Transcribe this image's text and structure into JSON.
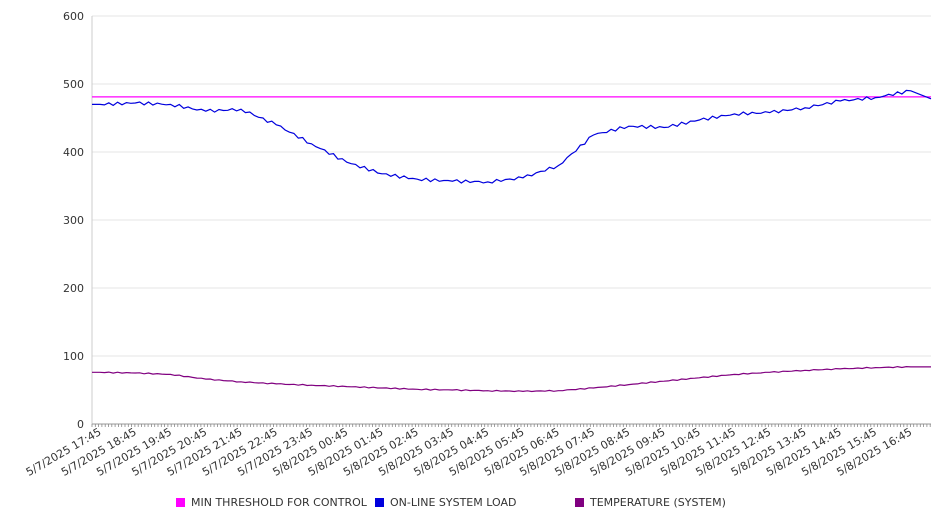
{
  "chart_data": {
    "type": "line",
    "title": "",
    "xlabel": "",
    "ylabel": "",
    "ylim": [
      0,
      600
    ],
    "y_ticks": [
      0,
      100,
      200,
      300,
      400,
      500,
      600
    ],
    "grid": true,
    "legend_position": "bottom",
    "categories": [
      "5/7/2025 17:45",
      "5/7/2025 18:45",
      "5/7/2025 19:45",
      "5/7/2025 20:45",
      "5/7/2025 21:45",
      "5/7/2025 22:45",
      "5/7/2025 23:45",
      "5/8/2025 00:45",
      "5/8/2025 01:45",
      "5/8/2025 02:45",
      "5/8/2025 03:45",
      "5/8/2025 04:45",
      "5/8/2025 05:45",
      "5/8/2025 06:45",
      "5/8/2025 07:45",
      "5/8/2025 08:45",
      "5/8/2025 09:45",
      "5/8/2025 10:45",
      "5/8/2025 11:45",
      "5/8/2025 12:45",
      "5/8/2025 13:45",
      "5/8/2025 14:45",
      "5/8/2025 15:45",
      "5/8/2025 16:45"
    ],
    "series": [
      {
        "name": "MIN THRESHOLD FOR CONTROL",
        "color": "#ff00ff",
        "x": [
          "5/7/2025 17:45",
          "5/8/2025 16:45"
        ],
        "values": [
          481,
          481
        ],
        "span": "full"
      },
      {
        "name": "ON-LINE SYSTEM LOAD",
        "color": "#0000dd",
        "x": [
          "5/7/2025 17:45",
          "5/7/2025 18:45",
          "5/7/2025 19:45",
          "5/7/2025 20:45",
          "5/7/2025 21:45",
          "5/7/2025 22:45",
          "5/7/2025 23:45",
          "5/8/2025 00:45",
          "5/8/2025 01:45",
          "5/8/2025 02:45",
          "5/8/2025 03:45",
          "5/8/2025 04:45",
          "5/8/2025 05:45",
          "5/8/2025 06:45",
          "5/8/2025 07:45",
          "5/8/2025 08:45",
          "5/8/2025 09:45",
          "5/8/2025 10:45",
          "5/8/2025 11:45",
          "5/8/2025 12:45",
          "5/8/2025 13:45",
          "5/8/2025 14:45",
          "5/8/2025 15:45",
          "5/8/2025 16:45"
        ],
        "values": [
          470,
          472,
          470,
          460,
          463,
          440,
          412,
          385,
          368,
          360,
          357,
          356,
          362,
          380,
          425,
          438,
          436,
          447,
          456,
          458,
          465,
          475,
          480,
          490
        ]
      },
      {
        "name": "TEMPERATURE (SYSTEM)",
        "color": "#800080",
        "x": [
          "5/7/2025 17:45",
          "5/7/2025 18:45",
          "5/7/2025 19:45",
          "5/7/2025 20:45",
          "5/7/2025 21:45",
          "5/7/2025 22:45",
          "5/7/2025 23:45",
          "5/8/2025 00:45",
          "5/8/2025 01:45",
          "5/8/2025 02:45",
          "5/8/2025 03:45",
          "5/8/2025 04:45",
          "5/8/2025 05:45",
          "5/8/2025 06:45",
          "5/8/2025 07:45",
          "5/8/2025 08:45",
          "5/8/2025 09:45",
          "5/8/2025 10:45",
          "5/8/2025 11:45",
          "5/8/2025 12:45",
          "5/8/2025 13:45",
          "5/8/2025 14:45",
          "5/8/2025 15:45",
          "5/8/2025 16:45"
        ],
        "values": [
          76,
          75,
          73,
          66,
          62,
          59,
          57,
          55,
          53,
          51,
          50,
          49,
          48,
          49,
          53,
          58,
          63,
          68,
          73,
          76,
          79,
          81,
          83,
          84
        ]
      }
    ]
  },
  "legend": [
    {
      "label": "MIN THRESHOLD FOR CONTROL",
      "color": "#ff00ff"
    },
    {
      "label": "ON-LINE SYSTEM LOAD",
      "color": "#0000dd"
    },
    {
      "label": "TEMPERATURE (SYSTEM)",
      "color": "#800080"
    }
  ]
}
